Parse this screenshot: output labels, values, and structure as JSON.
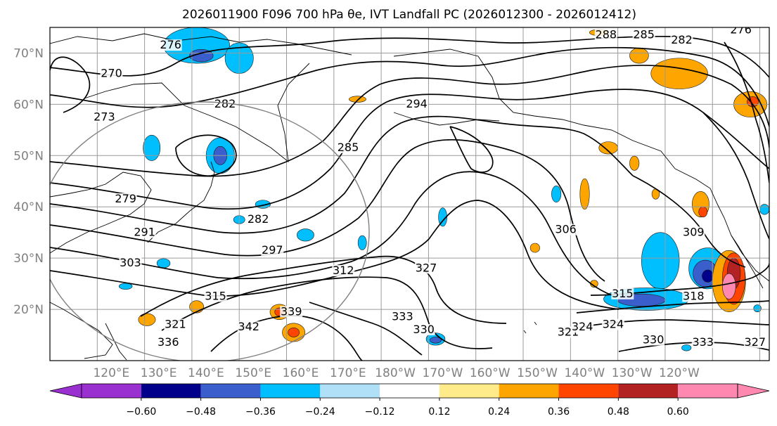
{
  "title": "2026011900 F096 700 hPa θe, IVT Landfall PC (2026012300 - 2026012412)",
  "map": {
    "lat_labels": [
      "70°N",
      "60°N",
      "50°N",
      "40°N",
      "30°N",
      "20°N"
    ],
    "lon_labels": [
      "120°E",
      "130°E",
      "140°E",
      "150°E",
      "160°E",
      "170°E",
      "180°W",
      "170°W",
      "160°W",
      "150°W",
      "140°W",
      "130°W",
      "120°W"
    ],
    "contour_labels": [
      {
        "text": "270",
        "lon": 123,
        "lat": 65.5
      },
      {
        "text": "273",
        "lon": 121.5,
        "lat": 57
      },
      {
        "text": "276",
        "lon": 135.5,
        "lat": 71
      },
      {
        "text": "279",
        "lon": 126,
        "lat": 41
      },
      {
        "text": "282",
        "lon": 147,
        "lat": 59.5
      },
      {
        "text": "282",
        "lon": 154,
        "lat": 37
      },
      {
        "text": "285",
        "lon": 173,
        "lat": 51
      },
      {
        "text": "291",
        "lon": 130,
        "lat": 34.5
      },
      {
        "text": "294",
        "lon": 187.5,
        "lat": 59.5
      },
      {
        "text": "297",
        "lon": 157,
        "lat": 31
      },
      {
        "text": "303",
        "lon": 127,
        "lat": 28.5
      },
      {
        "text": "306",
        "lon": 219,
        "lat": 35
      },
      {
        "text": "309",
        "lon": 246,
        "lat": 34.5
      },
      {
        "text": "312",
        "lon": 172,
        "lat": 27
      },
      {
        "text": "315",
        "lon": 145,
        "lat": 22
      },
      {
        "text": "315",
        "lon": 231,
        "lat": 22.5
      },
      {
        "text": "318",
        "lon": 246,
        "lat": 22
      },
      {
        "text": "321",
        "lon": 136.5,
        "lat": 16.5
      },
      {
        "text": "321",
        "lon": 219.5,
        "lat": 15
      },
      {
        "text": "324",
        "lon": 222.5,
        "lat": 16
      },
      {
        "text": "324",
        "lon": 229,
        "lat": 16.5
      },
      {
        "text": "327",
        "lon": 189.5,
        "lat": 27.5
      },
      {
        "text": "327",
        "lon": 259,
        "lat": 13
      },
      {
        "text": "330",
        "lon": 189,
        "lat": 15.5
      },
      {
        "text": "330",
        "lon": 237.5,
        "lat": 13.5
      },
      {
        "text": "333",
        "lon": 184.5,
        "lat": 18
      },
      {
        "text": "333",
        "lon": 248,
        "lat": 13
      },
      {
        "text": "336",
        "lon": 135,
        "lat": 13
      },
      {
        "text": "339",
        "lon": 161,
        "lat": 19
      },
      {
        "text": "342",
        "lon": 152,
        "lat": 16
      },
      {
        "text": "282",
        "lon": 243.5,
        "lat": 72
      },
      {
        "text": "285",
        "lon": 235.5,
        "lat": 73
      },
      {
        "text": "288",
        "lon": 227.5,
        "lat": 73
      },
      {
        "text": "276",
        "lon": 256,
        "lat": 74
      }
    ]
  },
  "colorbar": {
    "tick_labels": [
      "−0.60",
      "−0.48",
      "−0.36",
      "−0.24",
      "−0.12",
      "0.12",
      "0.24",
      "0.36",
      "0.48",
      "0.60"
    ],
    "colors": [
      "#9b30d0",
      "#00008b",
      "#3a5fcd",
      "#00bfff",
      "#b0e0f7",
      "#ffffff",
      "#ffeb8a",
      "#ffa500",
      "#ff4500",
      "#b22222",
      "#ff88b0",
      "#ff88b0"
    ]
  },
  "shading": [
    {
      "color": "#00bfff",
      "lon": 141,
      "lat": 71.5,
      "rx": 7,
      "ry": 3.5
    },
    {
      "color": "#00bfff",
      "lon": 150,
      "lat": 69,
      "rx": 3,
      "ry": 3
    },
    {
      "color": "#3a5fcd",
      "lon": 142,
      "lat": 69.5,
      "rx": 2.5,
      "ry": 1.2
    },
    {
      "color": "#00bfff",
      "lon": 131.5,
      "lat": 51.5,
      "rx": 1.8,
      "ry": 2.5
    },
    {
      "color": "#00bfff",
      "lon": 146,
      "lat": 50,
      "rx": 3,
      "ry": 3.5
    },
    {
      "color": "#3a5fcd",
      "lon": 146,
      "lat": 50,
      "rx": 1.4,
      "ry": 1.8
    },
    {
      "color": "#00bfff",
      "lon": 155,
      "lat": 40.5,
      "rx": 1.6,
      "ry": 0.8
    },
    {
      "color": "#00bfff",
      "lon": 164,
      "lat": 34.5,
      "rx": 1.8,
      "ry": 1.2
    },
    {
      "color": "#00bfff",
      "lon": 176,
      "lat": 33,
      "rx": 0.9,
      "ry": 1.4
    },
    {
      "color": "#00bfff",
      "lon": 150,
      "lat": 37.5,
      "rx": 1.2,
      "ry": 0.8
    },
    {
      "color": "#00bfff",
      "lon": 134,
      "lat": 29,
      "rx": 1.4,
      "ry": 0.9
    },
    {
      "color": "#00bfff",
      "lon": 126,
      "lat": 24.5,
      "rx": 1.4,
      "ry": 0.6
    },
    {
      "color": "#00bfff",
      "lon": 193,
      "lat": 38,
      "rx": 0.9,
      "ry": 1.8
    },
    {
      "color": "#00bfff",
      "lon": 191.5,
      "lat": 14.2,
      "rx": 2,
      "ry": 1.2
    },
    {
      "color": "#3a5fcd",
      "lon": 191.5,
      "lat": 14,
      "rx": 1.2,
      "ry": 0.6
    },
    {
      "color": "#00bfff",
      "lon": 217,
      "lat": 42.5,
      "rx": 1,
      "ry": 1.6
    },
    {
      "color": "#00bfff",
      "lon": 239,
      "lat": 29.5,
      "rx": 4,
      "ry": 5.5
    },
    {
      "color": "#00bfff",
      "lon": 236,
      "lat": 22,
      "rx": 9,
      "ry": 2.2
    },
    {
      "color": "#3a5fcd",
      "lon": 235,
      "lat": 21.8,
      "rx": 5,
      "ry": 1.2
    },
    {
      "color": "#00bfff",
      "lon": 249,
      "lat": 28,
      "rx": 4,
      "ry": 4
    },
    {
      "color": "#3a5fcd",
      "lon": 248.5,
      "lat": 27,
      "rx": 2.6,
      "ry": 2.6
    },
    {
      "color": "#00008b",
      "lon": 249,
      "lat": 26.5,
      "rx": 1.2,
      "ry": 1.2
    },
    {
      "color": "#00bfff",
      "lon": 261,
      "lat": 39.5,
      "rx": 1,
      "ry": 1
    },
    {
      "color": "#00bfff",
      "lon": 259.5,
      "lat": 20.2,
      "rx": 0.8,
      "ry": 0.7
    },
    {
      "color": "#00bfff",
      "lon": 244.5,
      "lat": 12.5,
      "rx": 1,
      "ry": 0.6
    },
    {
      "color": "#ffa500",
      "lon": 243,
      "lat": 66,
      "rx": 6,
      "ry": 3
    },
    {
      "color": "#ffa500",
      "lon": 234.5,
      "lat": 69.5,
      "rx": 2,
      "ry": 1.5
    },
    {
      "color": "#ffa500",
      "lon": 226,
      "lat": 74,
      "rx": 2,
      "ry": 0.6
    },
    {
      "color": "#ffa500",
      "lon": 258,
      "lat": 60,
      "rx": 3.5,
      "ry": 2.5
    },
    {
      "color": "#ff4500",
      "lon": 258.5,
      "lat": 60.5,
      "rx": 1.2,
      "ry": 1
    },
    {
      "color": "#ffa500",
      "lon": 223,
      "lat": 42.5,
      "rx": 1,
      "ry": 3
    },
    {
      "color": "#ffa500",
      "lon": 228,
      "lat": 51.5,
      "rx": 2,
      "ry": 1.2
    },
    {
      "color": "#ffa500",
      "lon": 175,
      "lat": 61,
      "rx": 1.8,
      "ry": 0.6
    },
    {
      "color": "#ffa500",
      "lon": 233.5,
      "lat": 48.5,
      "rx": 1,
      "ry": 1.4
    },
    {
      "color": "#ffa500",
      "lon": 238,
      "lat": 42.5,
      "rx": 0.8,
      "ry": 1
    },
    {
      "color": "#ffa500",
      "lon": 247.5,
      "lat": 40.5,
      "rx": 1.8,
      "ry": 2.5
    },
    {
      "color": "#ff4500",
      "lon": 248,
      "lat": 39,
      "rx": 0.9,
      "ry": 1
    },
    {
      "color": "#ffa500",
      "lon": 212.5,
      "lat": 32,
      "rx": 1,
      "ry": 0.9
    },
    {
      "color": "#ffa500",
      "lon": 225,
      "lat": 25,
      "rx": 0.8,
      "ry": 0.7
    },
    {
      "color": "#ffa500",
      "lon": 141,
      "lat": 20.5,
      "rx": 1.5,
      "ry": 1.2
    },
    {
      "color": "#ffa500",
      "lon": 158.5,
      "lat": 19.5,
      "rx": 2,
      "ry": 1.5
    },
    {
      "color": "#ff4500",
      "lon": 158.5,
      "lat": 19.5,
      "rx": 1,
      "ry": 0.8
    },
    {
      "color": "#ffa500",
      "lon": 161.5,
      "lat": 15.5,
      "rx": 2.4,
      "ry": 1.8
    },
    {
      "color": "#ff4500",
      "lon": 161.5,
      "lat": 15.5,
      "rx": 1.2,
      "ry": 0.9
    },
    {
      "color": "#ffa500",
      "lon": 130.5,
      "lat": 18,
      "rx": 1.8,
      "ry": 1.2
    },
    {
      "color": "#ffa500",
      "lon": 253.5,
      "lat": 25.5,
      "rx": 3.5,
      "ry": 6
    },
    {
      "color": "#ff4500",
      "lon": 254.5,
      "lat": 26,
      "rx": 2.4,
      "ry": 5
    },
    {
      "color": "#b22222",
      "lon": 254.5,
      "lat": 27,
      "rx": 1.4,
      "ry": 3
    },
    {
      "color": "#ff88b0",
      "lon": 253.5,
      "lat": 24.5,
      "rx": 1.4,
      "ry": 2.5
    }
  ]
}
